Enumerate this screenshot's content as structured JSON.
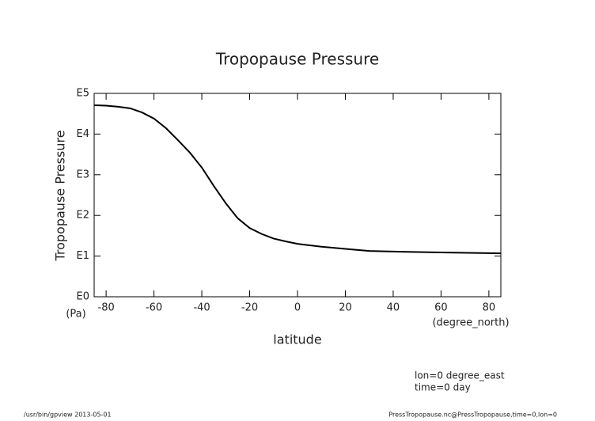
{
  "chart_data": {
    "type": "line",
    "title": "Tropopause Pressure",
    "xlabel": "latitude",
    "ylabel": "Tropopause Pressure",
    "xunit": "(degree_north)",
    "yunit": "(Pa)",
    "x": [
      -85,
      -80,
      -75,
      -70,
      -65,
      -60,
      -55,
      -50,
      -45,
      -40,
      -35,
      -30,
      -25,
      -20,
      -15,
      -10,
      -5,
      0,
      10,
      20,
      30,
      40,
      60,
      85
    ],
    "series": [
      {
        "name": "Tropopause Pressure",
        "color": "#000000",
        "values": [
          51000,
          50000,
          47000,
          43000,
          34000,
          24000,
          14000,
          7100,
          3500,
          1500,
          530,
          200,
          85,
          49,
          35,
          27,
          23,
          20,
          17,
          15,
          13.4,
          12.9,
          12.3,
          11.7
        ]
      }
    ],
    "xlim": [
      -85,
      85
    ],
    "xticks": [
      -80,
      -60,
      -40,
      -20,
      0,
      20,
      40,
      60,
      80
    ],
    "ylim": [
      1,
      100000
    ],
    "ylog": true,
    "yticks": [
      {
        "value": 1,
        "label": "E0"
      },
      {
        "value": 10,
        "label": "E1"
      },
      {
        "value": 100,
        "label": "E2"
      },
      {
        "value": 1000,
        "label": "E3"
      },
      {
        "value": 10000,
        "label": "E4"
      },
      {
        "value": 100000,
        "label": "E5"
      }
    ],
    "annotations": [
      "lon=0 degree_east",
      "time=0 day"
    ],
    "footer_left": "/usr/bin/gpview  2013-05-01",
    "footer_right": "PressTropopause.nc@PressTropopause,time=0,lon=0"
  }
}
